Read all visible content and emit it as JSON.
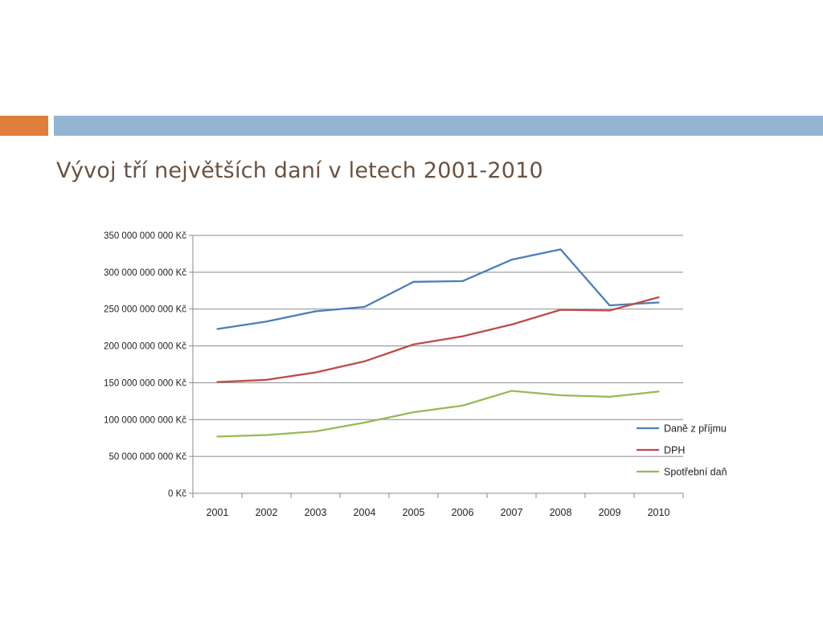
{
  "slide": {
    "title": "Vývoj tří největších daní v letech 2001-2010"
  },
  "colors": {
    "accent_orange": "#e07e3c",
    "accent_blue": "#93b3d3",
    "title_text": "#6a5240"
  },
  "chart_data": {
    "type": "line",
    "title": "",
    "xlabel": "",
    "ylabel": "",
    "categories": [
      "2001",
      "2002",
      "2003",
      "2004",
      "2005",
      "2006",
      "2007",
      "2008",
      "2009",
      "2010"
    ],
    "ylim": [
      0,
      350000000000
    ],
    "yticks": [
      {
        "value": 0,
        "label": "0 Kč"
      },
      {
        "value": 50000000000,
        "label": "50 000 000 000 Kč"
      },
      {
        "value": 100000000000,
        "label": "100 000 000 000 Kč"
      },
      {
        "value": 150000000000,
        "label": "150 000 000 000 Kč"
      },
      {
        "value": 200000000000,
        "label": "200 000 000 000 Kč"
      },
      {
        "value": 250000000000,
        "label": "250 000 000 000 Kč"
      },
      {
        "value": 300000000000,
        "label": "300 000 000 000 Kč"
      },
      {
        "value": 350000000000,
        "label": "350 000 000 000 Kč"
      }
    ],
    "grid": true,
    "legend_position": "right",
    "series": [
      {
        "name": "Daně z příjmu",
        "color": "#4a7ebb",
        "values": [
          223000000000,
          233000000000,
          247000000000,
          253000000000,
          287000000000,
          288000000000,
          317000000000,
          331000000000,
          255000000000,
          259000000000
        ]
      },
      {
        "name": "DPH",
        "color": "#be4b48",
        "values": [
          151000000000,
          154000000000,
          164000000000,
          179000000000,
          202000000000,
          213000000000,
          229000000000,
          249000000000,
          248000000000,
          266000000000
        ]
      },
      {
        "name": "Spotřební daň",
        "color": "#98b954",
        "values": [
          77000000000,
          79000000000,
          84000000000,
          96000000000,
          110000000000,
          119000000000,
          139000000000,
          133000000000,
          131000000000,
          138000000000
        ]
      }
    ]
  }
}
